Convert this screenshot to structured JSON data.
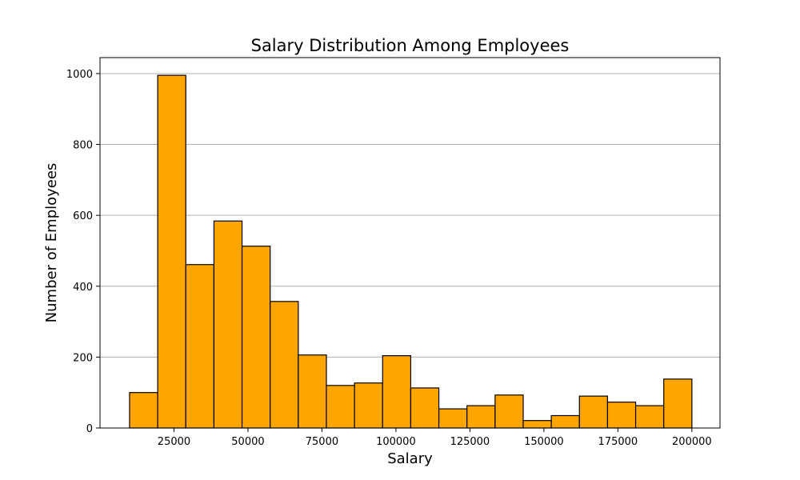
{
  "chart_data": {
    "type": "bar",
    "title": "Salary Distribution Among Employees",
    "xlabel": "Salary",
    "ylabel": "Number of Employees",
    "bin_edges": [
      10000,
      19500,
      29000,
      38500,
      48000,
      57500,
      67000,
      76500,
      86000,
      95500,
      105000,
      114500,
      124000,
      133500,
      143000,
      152500,
      162000,
      171500,
      181000,
      190500,
      200000
    ],
    "values": [
      100,
      995,
      461,
      584,
      513,
      357,
      206,
      120,
      127,
      204,
      113,
      54,
      63,
      93,
      21,
      35,
      90,
      73,
      63,
      138
    ],
    "xlim": [
      0,
      209500
    ],
    "ylim": [
      0,
      1045
    ],
    "x_ticks": [
      25000,
      50000,
      75000,
      100000,
      125000,
      150000,
      175000,
      200000
    ],
    "y_ticks": [
      0,
      200,
      400,
      600,
      800,
      1000
    ],
    "grid": "y-major",
    "colors": {
      "bar_fill": "#FFA500",
      "bar_edge": "#000000",
      "grid": "#b0b0b0",
      "axes": "#000000"
    }
  }
}
